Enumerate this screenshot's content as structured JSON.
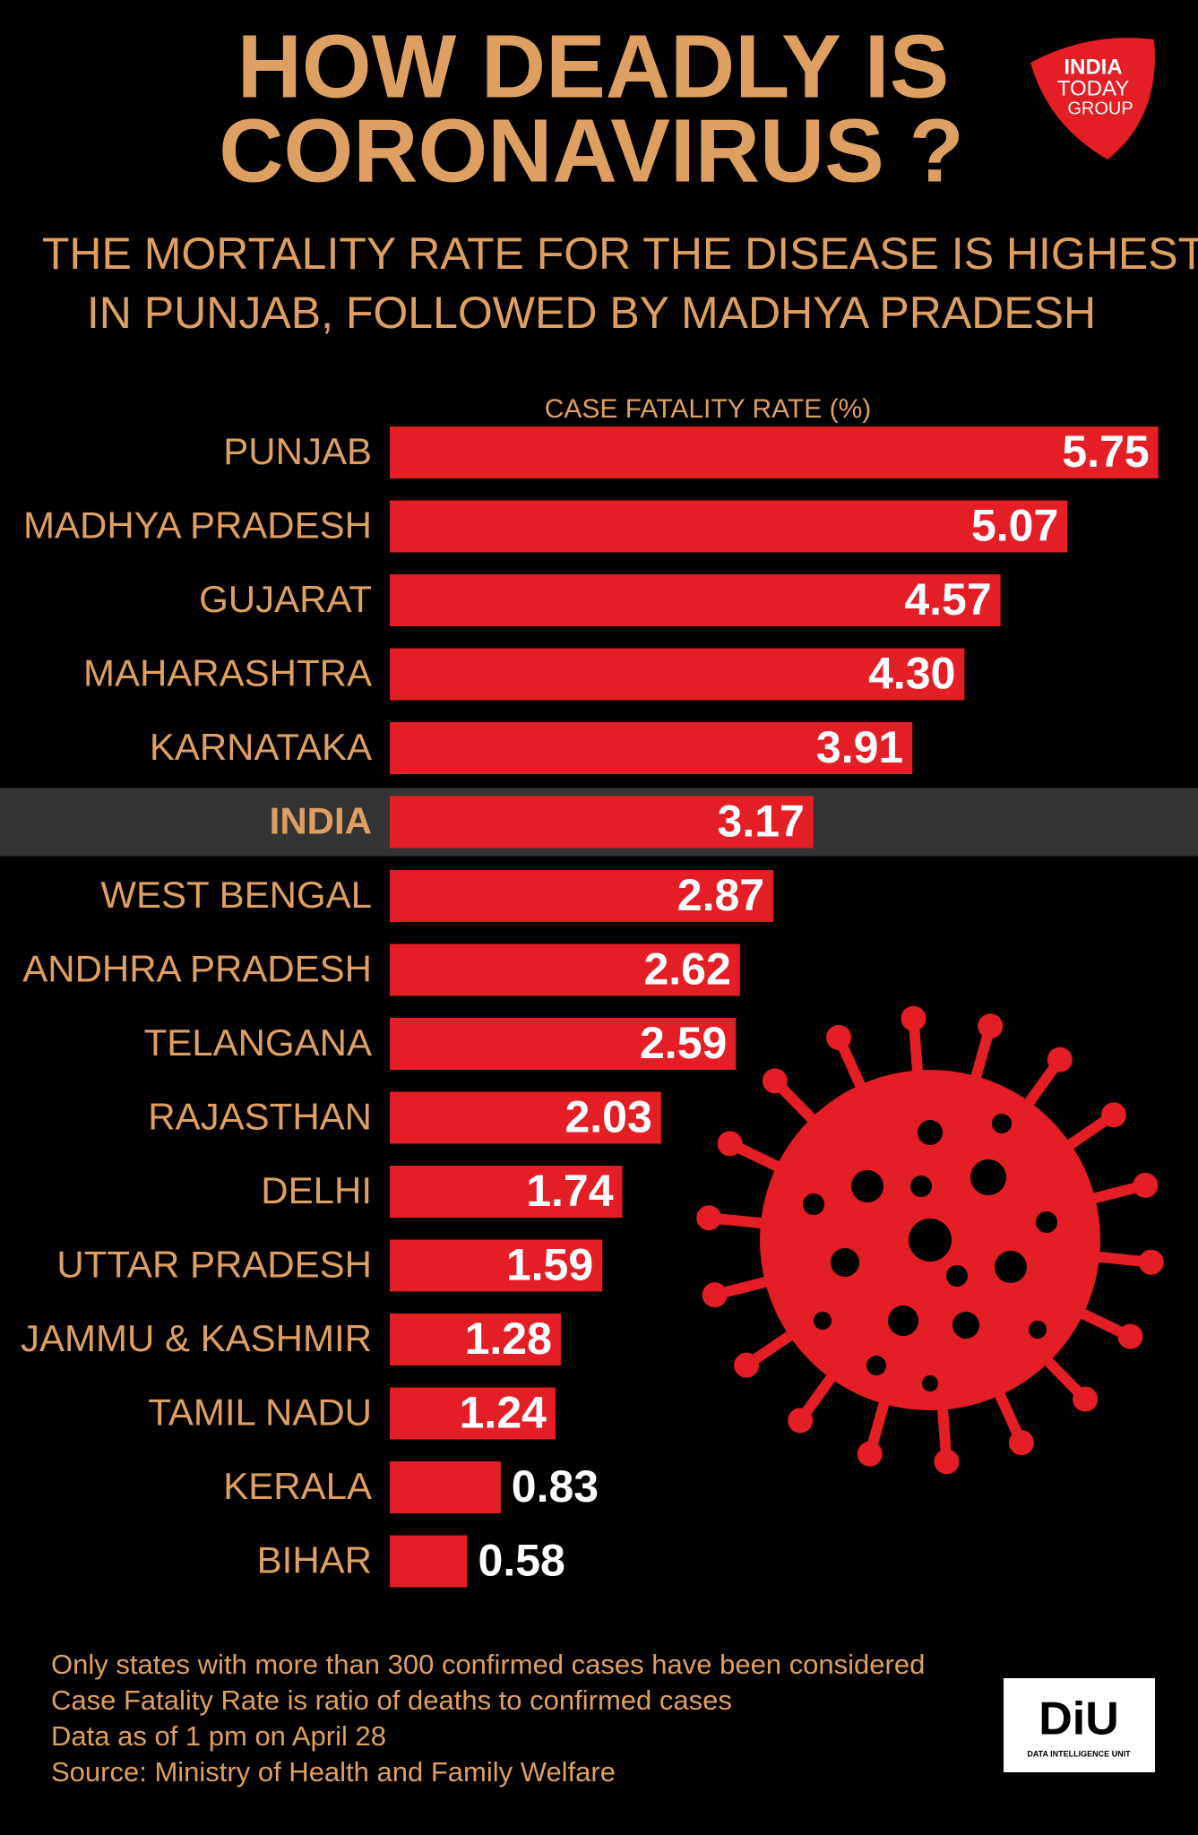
{
  "chart_data": {
    "type": "hbar",
    "title": [
      "HOW DEADLY IS",
      "CORONAVIRUS ?"
    ],
    "subtitle": [
      "THE MORTALITY RATE FOR THE DISEASE IS HIGHEST",
      "IN PUNJAB, FOLLOWED BY MADHYA PRADESH"
    ],
    "x_label": "CASE FATALITY RATE (%)",
    "categories": [
      "PUNJAB",
      "MADHYA PRADESH",
      "GUJARAT",
      "MAHARASHTRA",
      "KARNATAKA",
      "INDIA",
      "WEST BENGAL",
      "ANDHRA PRADESH",
      "TELANGANA",
      "RAJASTHAN",
      "DELHI",
      "UTTAR PRADESH",
      "JAMMU & KASHMIR",
      "TAMIL NADU",
      "KERALA",
      "BIHAR"
    ],
    "values": [
      5.75,
      5.07,
      4.57,
      4.3,
      3.91,
      3.17,
      2.87,
      2.62,
      2.59,
      2.03,
      1.74,
      1.59,
      1.28,
      1.24,
      0.83,
      0.58
    ],
    "value_labels": [
      "5.75",
      "5.07",
      "4.57",
      "4.30",
      "3.91",
      "3.17",
      "2.87",
      "2.62",
      "2.59",
      "2.03",
      "1.74",
      "1.59",
      "1.28",
      "1.24",
      "0.83",
      "0.58"
    ],
    "color": "#e31e24",
    "highlight_index": 5,
    "xlim": [
      0,
      6
    ],
    "notes": [
      "Only states with more than 300 confirmed cases have been considered",
      "Case Fatality Rate is ratio of deaths to confirmed cases",
      "Data as of 1 pm on April 28",
      "Source: Ministry of Health and Family Welfare"
    ],
    "brand": [
      "INDIA",
      "TODAY",
      "GROUP"
    ],
    "diu": "DiU",
    "diu_sub": "DATA INTELLIGENCE UNIT"
  }
}
